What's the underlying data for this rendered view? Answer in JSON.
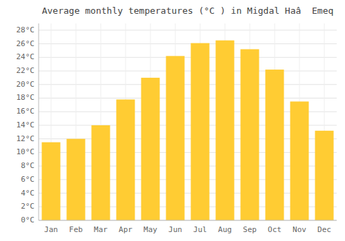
{
  "chart_data": {
    "type": "bar",
    "title": "Average monthly temperatures (°C ) in Migdal Haâ  Emeq",
    "categories": [
      "Jan",
      "Feb",
      "Mar",
      "Apr",
      "May",
      "Jun",
      "Jul",
      "Aug",
      "Sep",
      "Oct",
      "Nov",
      "Dec"
    ],
    "values": [
      11.5,
      12.0,
      14.0,
      17.8,
      21.0,
      24.2,
      26.1,
      26.5,
      25.2,
      22.2,
      17.5,
      13.2
    ],
    "color": "#FFCC33",
    "ylim": [
      0,
      29
    ],
    "yticks": [
      {
        "value": 0,
        "label": "0°C"
      },
      {
        "value": 2,
        "label": "2°C"
      },
      {
        "value": 4,
        "label": "4°C"
      },
      {
        "value": 6,
        "label": "6°C"
      },
      {
        "value": 8,
        "label": "8°C"
      },
      {
        "value": 10,
        "label": "10°C"
      },
      {
        "value": 12,
        "label": "12°C"
      },
      {
        "value": 14,
        "label": "14°C"
      },
      {
        "value": 16,
        "label": "16°C"
      },
      {
        "value": 18,
        "label": "18°C"
      },
      {
        "value": 20,
        "label": "20°C"
      },
      {
        "value": 22,
        "label": "22°C"
      },
      {
        "value": 24,
        "label": "24°C"
      },
      {
        "value": 26,
        "label": "26°C"
      },
      {
        "value": 28,
        "label": "28°C"
      }
    ],
    "grid": true
  }
}
